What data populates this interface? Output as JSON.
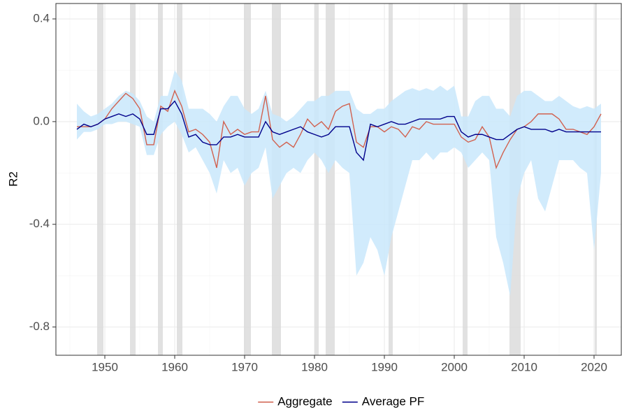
{
  "chart_data": {
    "type": "line",
    "y_label": "R2",
    "xlim": [
      1943,
      2023.9
    ],
    "ylim": [
      -0.91,
      0.46
    ],
    "xticks": [
      1950,
      1960,
      1970,
      1980,
      1990,
      2000,
      2010,
      2020
    ],
    "xminor": [
      1945,
      1955,
      1965,
      1975,
      1985,
      1995,
      2005,
      2015
    ],
    "yticks": [
      {
        "value": -0.8,
        "label": "-0.8"
      },
      {
        "value": -0.4,
        "label": "-0.4"
      },
      {
        "value": 0,
        "label": "0.0"
      },
      {
        "value": 0.4,
        "label": "0.4"
      }
    ],
    "yminor": [
      -0.6,
      -0.2,
      0.2
    ],
    "grid": true,
    "legend": "bottom",
    "recession_color": "#d9d9d9",
    "recessions": [
      [
        1948.9,
        1949.8
      ],
      [
        1953.6,
        1954.4
      ],
      [
        1957.6,
        1958.3
      ],
      [
        1960.3,
        1961.1
      ],
      [
        1969.9,
        1970.9
      ],
      [
        1973.9,
        1975.2
      ],
      [
        1980.0,
        1980.6
      ],
      [
        1981.6,
        1982.9
      ],
      [
        1990.6,
        1991.2
      ],
      [
        2001.2,
        2001.9
      ],
      [
        2007.9,
        2009.5
      ],
      [
        2020.1,
        2020.4
      ]
    ],
    "x": [
      1946,
      1947,
      1948,
      1949,
      1950,
      1951,
      1952,
      1953,
      1954,
      1955,
      1956,
      1957,
      1958,
      1959,
      1960,
      1961,
      1962,
      1963,
      1964,
      1965,
      1966,
      1967,
      1968,
      1969,
      1970,
      1971,
      1972,
      1973,
      1974,
      1975,
      1976,
      1977,
      1978,
      1979,
      1980,
      1981,
      1982,
      1983,
      1984,
      1985,
      1986,
      1987,
      1988,
      1989,
      1990,
      1991,
      1992,
      1993,
      1994,
      1995,
      1996,
      1997,
      1998,
      1999,
      2000,
      2001,
      2002,
      2003,
      2004,
      2005,
      2006,
      2007,
      2008,
      2009,
      2010,
      2011,
      2012,
      2013,
      2014,
      2015,
      2016,
      2017,
      2018,
      2019,
      2020,
      2021
    ],
    "band": {
      "color": "#c9e7fc",
      "lower": [
        -0.07,
        -0.04,
        -0.04,
        -0.03,
        -0.01,
        -0.01,
        0.0,
        0.0,
        -0.01,
        -0.02,
        -0.13,
        -0.13,
        -0.05,
        -0.02,
        0.0,
        -0.05,
        -0.12,
        -0.1,
        -0.15,
        -0.2,
        -0.28,
        -0.15,
        -0.2,
        -0.18,
        -0.25,
        -0.2,
        -0.18,
        -0.1,
        -0.3,
        -0.25,
        -0.2,
        -0.18,
        -0.2,
        -0.15,
        -0.12,
        -0.15,
        -0.2,
        -0.15,
        -0.18,
        -0.2,
        -0.6,
        -0.55,
        -0.45,
        -0.5,
        -0.6,
        -0.45,
        -0.35,
        -0.25,
        -0.15,
        -0.15,
        -0.12,
        -0.15,
        -0.12,
        -0.12,
        -0.1,
        -0.12,
        -0.18,
        -0.15,
        -0.12,
        -0.15,
        -0.45,
        -0.55,
        -0.68,
        -0.3,
        -0.2,
        -0.15,
        -0.3,
        -0.35,
        -0.25,
        -0.15,
        -0.15,
        -0.15,
        -0.18,
        -0.2,
        -0.5,
        -0.2
      ],
      "upper": [
        0.07,
        0.04,
        0.02,
        0.03,
        0.05,
        0.07,
        0.1,
        0.12,
        0.11,
        0.08,
        0.02,
        0.0,
        0.1,
        0.1,
        0.2,
        0.16,
        0.05,
        0.05,
        0.05,
        0.03,
        0.0,
        0.06,
        0.1,
        0.1,
        0.05,
        0.03,
        0.05,
        0.12,
        0.03,
        0.02,
        0.0,
        0.02,
        0.05,
        0.08,
        0.08,
        0.1,
        0.1,
        0.12,
        0.12,
        0.12,
        0.05,
        0.03,
        0.03,
        0.05,
        0.05,
        0.08,
        0.1,
        0.12,
        0.13,
        0.12,
        0.13,
        0.12,
        0.14,
        0.12,
        0.14,
        0.02,
        0.02,
        0.08,
        0.1,
        0.1,
        0.05,
        0.05,
        0.02,
        0.1,
        0.12,
        0.12,
        0.1,
        0.08,
        0.08,
        0.1,
        0.08,
        0.06,
        0.05,
        0.06,
        0.05,
        0.07
      ]
    },
    "series": [
      {
        "name": "Aggregate",
        "color": "#d1614f",
        "values": [
          -0.02,
          -0.02,
          -0.02,
          -0.01,
          0.01,
          0.05,
          0.08,
          0.11,
          0.09,
          0.05,
          -0.09,
          -0.09,
          0.06,
          0.04,
          0.12,
          0.06,
          -0.04,
          -0.03,
          -0.05,
          -0.08,
          -0.18,
          0.0,
          -0.05,
          -0.03,
          -0.05,
          -0.04,
          -0.04,
          0.1,
          -0.07,
          -0.1,
          -0.08,
          -0.1,
          -0.05,
          0.01,
          -0.02,
          0.0,
          -0.03,
          0.04,
          0.06,
          0.07,
          -0.08,
          -0.1,
          -0.02,
          -0.02,
          -0.04,
          -0.02,
          -0.03,
          -0.06,
          -0.02,
          -0.03,
          0.0,
          -0.01,
          -0.01,
          -0.01,
          -0.01,
          -0.06,
          -0.08,
          -0.07,
          -0.02,
          -0.06,
          -0.18,
          -0.12,
          -0.07,
          -0.03,
          -0.02,
          0.0,
          0.03,
          0.03,
          0.03,
          0.01,
          -0.03,
          -0.03,
          -0.04,
          -0.05,
          -0.02,
          0.03
        ]
      },
      {
        "name": "Average PF",
        "color": "#00008b",
        "values": [
          -0.03,
          -0.01,
          -0.02,
          -0.01,
          0.01,
          0.02,
          0.03,
          0.02,
          0.03,
          0.01,
          -0.05,
          -0.05,
          0.05,
          0.05,
          0.08,
          0.03,
          -0.06,
          -0.05,
          -0.08,
          -0.09,
          -0.09,
          -0.06,
          -0.06,
          -0.05,
          -0.06,
          -0.06,
          -0.06,
          0.0,
          -0.04,
          -0.05,
          -0.04,
          -0.03,
          -0.02,
          -0.04,
          -0.05,
          -0.06,
          -0.05,
          -0.02,
          -0.02,
          -0.02,
          -0.12,
          -0.15,
          -0.01,
          -0.02,
          -0.01,
          0.0,
          -0.01,
          -0.01,
          0.0,
          0.01,
          0.01,
          0.01,
          0.01,
          0.02,
          0.02,
          -0.04,
          -0.06,
          -0.05,
          -0.05,
          -0.06,
          -0.07,
          -0.07,
          -0.05,
          -0.03,
          -0.02,
          -0.03,
          -0.03,
          -0.03,
          -0.04,
          -0.03,
          -0.04,
          -0.04,
          -0.04,
          -0.04,
          -0.04,
          -0.04
        ]
      }
    ]
  }
}
